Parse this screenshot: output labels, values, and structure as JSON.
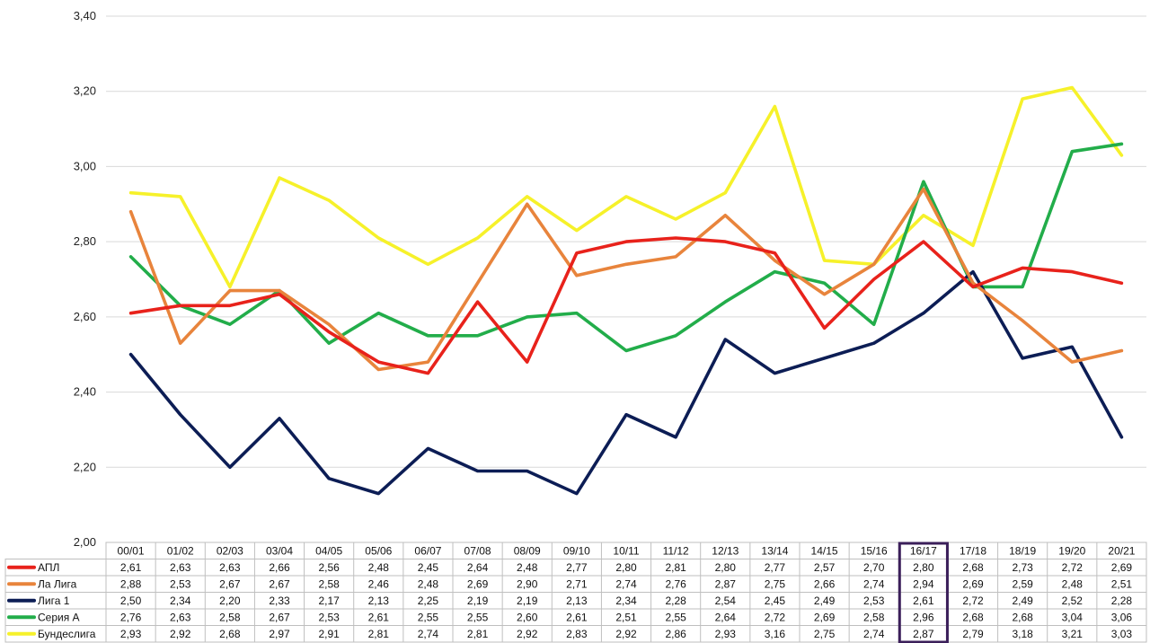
{
  "chart_data": {
    "type": "line",
    "title": "",
    "xlabel": "",
    "ylabel": "",
    "ylim": [
      2.0,
      3.4
    ],
    "y_ticks": [
      "2,00",
      "2,20",
      "2,40",
      "2,60",
      "2,80",
      "3,00",
      "3,20",
      "3,40"
    ],
    "y_tick_values": [
      2.0,
      2.2,
      2.4,
      2.6,
      2.8,
      3.0,
      3.2,
      3.4
    ],
    "grid": true,
    "legend_placement": "data-table-left",
    "highlighted_category": "16/17",
    "highlight_color": "#3b1f5a",
    "categories": [
      "00/01",
      "01/02",
      "02/03",
      "03/04",
      "04/05",
      "05/06",
      "06/07",
      "07/08",
      "08/09",
      "09/10",
      "10/11",
      "11/12",
      "12/13",
      "13/14",
      "14/15",
      "15/16",
      "16/17",
      "17/18",
      "18/19",
      "19/20",
      "20/21"
    ],
    "series": [
      {
        "name": "АПЛ",
        "color": "#e8221b",
        "values": [
          2.61,
          2.63,
          2.63,
          2.66,
          2.56,
          2.48,
          2.45,
          2.64,
          2.48,
          2.77,
          2.8,
          2.81,
          2.8,
          2.77,
          2.57,
          2.7,
          2.8,
          2.68,
          2.73,
          2.72,
          2.69
        ],
        "labels": [
          "2,61",
          "2,63",
          "2,63",
          "2,66",
          "2,56",
          "2,48",
          "2,45",
          "2,64",
          "2,48",
          "2,77",
          "2,80",
          "2,81",
          "2,80",
          "2,77",
          "2,57",
          "2,70",
          "2,80",
          "2,68",
          "2,73",
          "2,72",
          "2,69"
        ]
      },
      {
        "name": "Ла Лига",
        "color": "#e8843c",
        "values": [
          2.88,
          2.53,
          2.67,
          2.67,
          2.58,
          2.46,
          2.48,
          2.69,
          2.9,
          2.71,
          2.74,
          2.76,
          2.87,
          2.75,
          2.66,
          2.74,
          2.94,
          2.69,
          2.59,
          2.48,
          2.51
        ],
        "labels": [
          "2,88",
          "2,53",
          "2,67",
          "2,67",
          "2,58",
          "2,46",
          "2,48",
          "2,69",
          "2,90",
          "2,71",
          "2,74",
          "2,76",
          "2,87",
          "2,75",
          "2,66",
          "2,74",
          "2,94",
          "2,69",
          "2,59",
          "2,48",
          "2,51"
        ]
      },
      {
        "name": "Лига 1",
        "color": "#0c1d55",
        "values": [
          2.5,
          2.34,
          2.2,
          2.33,
          2.17,
          2.13,
          2.25,
          2.19,
          2.19,
          2.13,
          2.34,
          2.28,
          2.54,
          2.45,
          2.49,
          2.53,
          2.61,
          2.72,
          2.49,
          2.52,
          2.28
        ],
        "labels": [
          "2,50",
          "2,34",
          "2,20",
          "2,33",
          "2,17",
          "2,13",
          "2,25",
          "2,19",
          "2,19",
          "2,13",
          "2,34",
          "2,28",
          "2,54",
          "2,45",
          "2,49",
          "2,53",
          "2,61",
          "2,72",
          "2,49",
          "2,52",
          "2,28"
        ]
      },
      {
        "name": "Серия А",
        "color": "#22ad4a",
        "values": [
          2.76,
          2.63,
          2.58,
          2.67,
          2.53,
          2.61,
          2.55,
          2.55,
          2.6,
          2.61,
          2.51,
          2.55,
          2.64,
          2.72,
          2.69,
          2.58,
          2.96,
          2.68,
          2.68,
          3.04,
          3.06
        ],
        "labels": [
          "2,76",
          "2,63",
          "2,58",
          "2,67",
          "2,53",
          "2,61",
          "2,55",
          "2,55",
          "2,60",
          "2,61",
          "2,51",
          "2,55",
          "2,64",
          "2,72",
          "2,69",
          "2,58",
          "2,96",
          "2,68",
          "2,68",
          "3,04",
          "3,06"
        ]
      },
      {
        "name": "Бундеслига",
        "color": "#f6f12a",
        "values": [
          2.93,
          2.92,
          2.68,
          2.97,
          2.91,
          2.81,
          2.74,
          2.81,
          2.92,
          2.83,
          2.92,
          2.86,
          2.93,
          3.16,
          2.75,
          2.74,
          2.87,
          2.79,
          3.18,
          3.21,
          3.03
        ],
        "labels": [
          "2,93",
          "2,92",
          "2,68",
          "2,97",
          "2,91",
          "2,81",
          "2,74",
          "2,81",
          "2,92",
          "2,83",
          "2,92",
          "2,86",
          "2,93",
          "3,16",
          "2,75",
          "2,74",
          "2,87",
          "2,79",
          "3,18",
          "3,21",
          "3,03"
        ]
      }
    ]
  }
}
